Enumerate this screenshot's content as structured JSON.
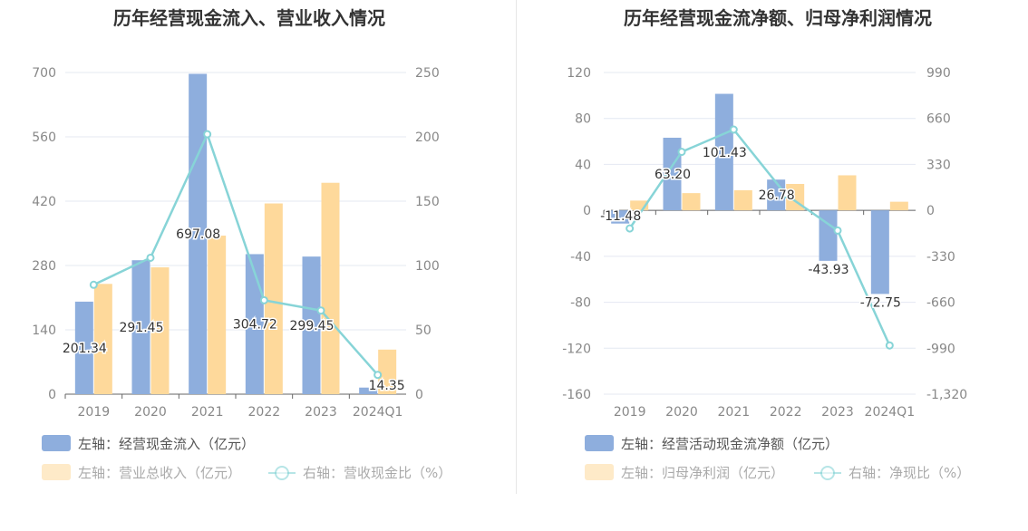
{
  "chart_data": [
    {
      "type": "bar",
      "title": "历年经营现金流入、营业收入情况",
      "categories": [
        "2019",
        "2020",
        "2021",
        "2022",
        "2023",
        "2024Q1"
      ],
      "left_axis": {
        "ticks": [
          "700",
          "560",
          "420",
          "280",
          "140",
          "0"
        ],
        "ylim": [
          0,
          700
        ]
      },
      "right_axis": {
        "ticks": [
          "250",
          "200",
          "150",
          "100",
          "50",
          "0"
        ],
        "ylim": [
          0,
          250
        ]
      },
      "series": [
        {
          "name": "左轴：经营现金流入（亿元）",
          "type": "bar",
          "axis": "left",
          "color": "#8eaedd",
          "values": [
            201.34,
            291.45,
            697.08,
            304.72,
            299.45,
            14.35
          ],
          "labels": [
            "201.34",
            "291.45",
            "697.08",
            "304.72",
            "299.45",
            "14.35"
          ]
        },
        {
          "name": "左轴：营业总收入（亿元）",
          "type": "bar",
          "axis": "left",
          "color": "#fed99b",
          "values": [
            240,
            276,
            345,
            415,
            460,
            97
          ]
        },
        {
          "name": "右轴：营收现金比（%）",
          "type": "line",
          "axis": "right",
          "color": "#87d4d7",
          "values": [
            85,
            106,
            202,
            73,
            65,
            15
          ]
        }
      ],
      "grid": true,
      "legend": "bottom-left"
    },
    {
      "type": "bar",
      "title": "历年经营现金流净额、归母净利润情况",
      "categories": [
        "2019",
        "2020",
        "2021",
        "2022",
        "2023",
        "2024Q1"
      ],
      "left_axis": {
        "ticks": [
          "120",
          "80",
          "40",
          "0",
          "-40",
          "-80",
          "-120",
          "-160"
        ],
        "ylim": [
          -160,
          120
        ]
      },
      "right_axis": {
        "ticks": [
          "990",
          "660",
          "330",
          "0",
          "-330",
          "-660",
          "-990",
          "-1,320"
        ],
        "ylim": [
          -1320,
          990
        ]
      },
      "series": [
        {
          "name": "左轴：经营活动现金流净额（亿元）",
          "type": "bar",
          "axis": "left",
          "color": "#8eaedd",
          "values": [
            -11.48,
            63.2,
            101.43,
            26.78,
            -43.93,
            -72.75
          ],
          "labels": [
            "-11.48",
            "63.20",
            "101.43",
            "26.78",
            "-43.93",
            "-72.75"
          ]
        },
        {
          "name": "左轴：归母净利润（亿元）",
          "type": "bar",
          "axis": "left",
          "color": "#fed99b",
          "values": [
            8.5,
            15,
            17.5,
            23,
            30.5,
            7.5
          ]
        },
        {
          "name": "右轴：净现比（%）",
          "type": "line",
          "axis": "right",
          "color": "#87d4d7",
          "values": [
            -130,
            420,
            580,
            115,
            -145,
            -970
          ]
        }
      ],
      "grid": true,
      "legend": "bottom-left"
    }
  ]
}
